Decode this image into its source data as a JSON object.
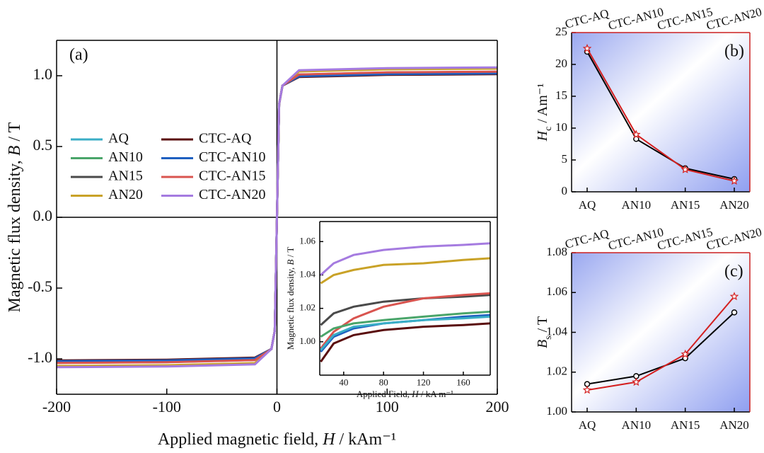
{
  "chart_data": [
    {
      "type": "line",
      "label": "(a)",
      "xlabel": [
        {
          "text": "Applied magnetic field, "
        },
        {
          "text": "H",
          "style": "italic"
        },
        {
          "text": " / kAm⁻¹"
        }
      ],
      "ylabel": [
        {
          "text": "Magnetic flux density, "
        },
        {
          "text": "B",
          "style": "italic"
        },
        {
          "text": " / T"
        }
      ],
      "xlim": [
        -200,
        200
      ],
      "ylim": [
        -1.25,
        1.25
      ],
      "xticks": [
        -200,
        -100,
        0,
        100,
        200
      ],
      "yticks": [
        {
          "value": -1,
          "label": "-1.0"
        },
        {
          "value": -0.5,
          "label": "-0.5"
        },
        {
          "value": 0,
          "label": "0.0"
        },
        {
          "value": 0.5,
          "label": "0.5"
        },
        {
          "value": 1,
          "label": "1.0"
        }
      ],
      "zero_lines": true,
      "legend": "center left",
      "x": [
        -200,
        -100,
        -20,
        -5,
        -2,
        0,
        2,
        5,
        20,
        100,
        200
      ],
      "series": [
        {
          "name": "AQ",
          "color": "#3aaec6",
          "values": [
            -1.015,
            -1.01,
            -0.995,
            -0.93,
            -0.8,
            0,
            0.8,
            0.93,
            0.995,
            1.01,
            1.015
          ]
        },
        {
          "name": "AN10",
          "color": "#4aa56a",
          "values": [
            -1.018,
            -1.013,
            -0.998,
            -0.93,
            -0.8,
            0,
            0.8,
            0.93,
            0.998,
            1.013,
            1.018
          ]
        },
        {
          "name": "AN15",
          "color": "#4a4a4a",
          "values": [
            -1.028,
            -1.023,
            -1.008,
            -0.93,
            -0.8,
            0,
            0.8,
            0.93,
            1.008,
            1.023,
            1.028
          ]
        },
        {
          "name": "AN20",
          "color": "#c9a227",
          "values": [
            -1.05,
            -1.045,
            -1.03,
            -0.93,
            -0.8,
            0,
            0.8,
            0.93,
            1.03,
            1.045,
            1.05
          ]
        },
        {
          "name": "CTC-AQ",
          "color": "#5a0d0d",
          "values": [
            -1.011,
            -1.006,
            -0.991,
            -0.93,
            -0.8,
            0,
            0.8,
            0.93,
            0.991,
            1.006,
            1.011
          ]
        },
        {
          "name": "CTC-AN10",
          "color": "#1f60c0",
          "values": [
            -1.016,
            -1.011,
            -0.996,
            -0.93,
            -0.8,
            0,
            0.8,
            0.93,
            0.996,
            1.011,
            1.016
          ]
        },
        {
          "name": "CTC-AN15",
          "color": "#d9544f",
          "values": [
            -1.029,
            -1.024,
            -1.009,
            -0.93,
            -0.8,
            0,
            0.8,
            0.93,
            1.009,
            1.024,
            1.029
          ]
        },
        {
          "name": "CTC-AN20",
          "color": "#a57be0",
          "values": [
            -1.059,
            -1.054,
            -1.039,
            -0.93,
            -0.8,
            0,
            0.8,
            0.93,
            1.039,
            1.054,
            1.059
          ]
        }
      ]
    },
    {
      "type": "line",
      "xlabel": [
        {
          "text": "Applied Field, "
        },
        {
          "text": "H",
          "style": "italic"
        },
        {
          "text": " / kA m⁻¹"
        }
      ],
      "ylabel": [
        {
          "text": "Magnetic flux density, "
        },
        {
          "text": "B",
          "style": "italic"
        },
        {
          "text": " / T"
        }
      ],
      "xlim": [
        16,
        187
      ],
      "ylim": [
        0.98,
        1.072
      ],
      "xticks": [
        40,
        80,
        120,
        160
      ],
      "yticks": [
        {
          "value": 1,
          "label": "1.00"
        },
        1.02,
        1.04,
        1.06
      ],
      "x": [
        17,
        30,
        50,
        80,
        120,
        160,
        187
      ],
      "series": [
        {
          "color": "#a57be0",
          "values": [
            1.04,
            1.047,
            1.052,
            1.055,
            1.057,
            1.058,
            1.059
          ]
        },
        {
          "color": "#c9a227",
          "values": [
            1.035,
            1.04,
            1.043,
            1.046,
            1.047,
            1.049,
            1.05
          ]
        },
        {
          "color": "#4a4a4a",
          "values": [
            1.01,
            1.017,
            1.021,
            1.024,
            1.026,
            1.027,
            1.028
          ]
        },
        {
          "color": "#d9544f",
          "values": [
            0.996,
            1.006,
            1.014,
            1.021,
            1.026,
            1.028,
            1.029
          ]
        },
        {
          "color": "#4aa56a",
          "values": [
            1.003,
            1.008,
            1.011,
            1.013,
            1.015,
            1.017,
            1.018
          ]
        },
        {
          "color": "#1f60c0",
          "values": [
            0.994,
            1.003,
            1.008,
            1.011,
            1.013,
            1.015,
            1.016
          ]
        },
        {
          "color": "#3aaec6",
          "values": [
            0.995,
            1.004,
            1.009,
            1.011,
            1.013,
            1.014,
            1.015
          ]
        },
        {
          "color": "#5a0d0d",
          "values": [
            0.988,
            0.999,
            1.004,
            1.007,
            1.009,
            1.01,
            1.011
          ]
        }
      ]
    },
    {
      "type": "line",
      "label": "(b)",
      "ylabel": [
        {
          "text": "H",
          "style": "italic"
        },
        {
          "text": "c",
          "style": "sub"
        },
        {
          "text": " / Am⁻¹"
        }
      ],
      "categories": [
        "AQ",
        "AN10",
        "AN15",
        "AN20"
      ],
      "top_categories": [
        "CTC-AQ",
        "CTC-AN10",
        "CTC-AN15",
        "CTC-AN20"
      ],
      "ylim": [
        0,
        25
      ],
      "yticks": [
        0,
        5,
        10,
        15,
        20,
        25
      ],
      "frame_color": "#cc2020",
      "series": [
        {
          "color": "#000000",
          "marker": "circle",
          "values": [
            22.0,
            8.3,
            3.7,
            2.0
          ]
        },
        {
          "color": "#d42020",
          "marker": "star",
          "values": [
            22.5,
            9.0,
            3.5,
            1.7
          ]
        }
      ]
    },
    {
      "type": "line",
      "label": "(c)",
      "ylabel": [
        {
          "text": "B",
          "style": "italic"
        },
        {
          "text": "s",
          "style": "sub"
        },
        {
          "text": " / T"
        }
      ],
      "categories": [
        "AQ",
        "AN10",
        "AN15",
        "AN20"
      ],
      "top_categories": [
        "CTC-AQ",
        "CTC-AN10",
        "CTC-AN15",
        "CTC-AN20"
      ],
      "ylim": [
        1,
        1.08
      ],
      "yticks": [
        {
          "value": 1,
          "label": "1.00"
        },
        1.02,
        1.04,
        1.06,
        {
          "value": 1.08,
          "label": "1.08"
        }
      ],
      "frame_color": "#cc2020",
      "series": [
        {
          "color": "#000000",
          "marker": "circle",
          "values": [
            1.014,
            1.018,
            1.027,
            1.05
          ]
        },
        {
          "color": "#d42020",
          "marker": "star",
          "values": [
            1.011,
            1.015,
            1.029,
            1.058
          ]
        }
      ]
    }
  ]
}
